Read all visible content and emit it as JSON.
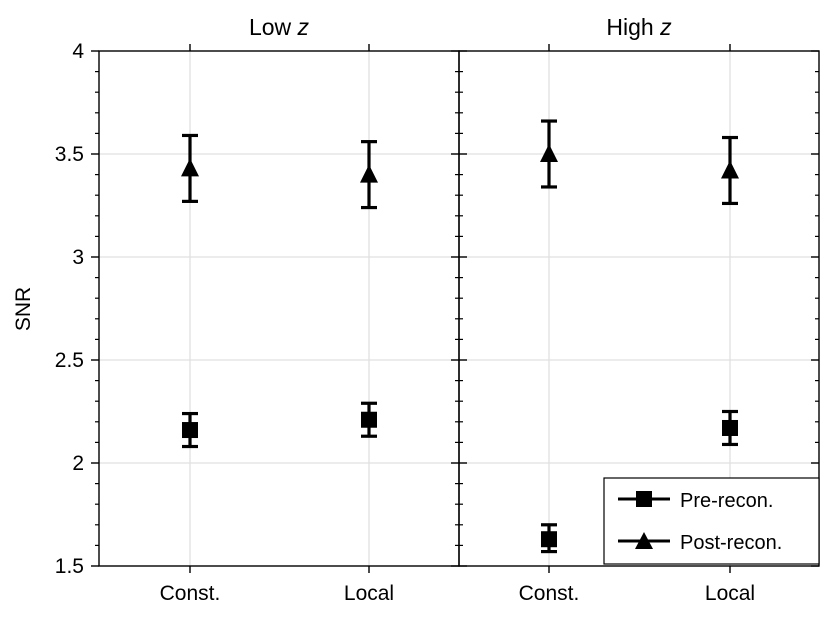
{
  "chart_data": {
    "type": "scatter",
    "ylabel": "SNR",
    "ylim": [
      1.5,
      4
    ],
    "yticks": [
      "1.5",
      "2",
      "2.5",
      "3",
      "3.5",
      "4"
    ],
    "categories": [
      "Const.",
      "Local"
    ],
    "grid": true,
    "legend_placement": "bottom-right",
    "panels": [
      {
        "title_prefix": "High ",
        "title_var": "z",
        "series": [
          {
            "name": "Pre-recon.",
            "marker": "square",
            "values": [
              1.63,
              2.17
            ],
            "err_low": [
              1.57,
              2.09
            ],
            "err_high": [
              1.7,
              2.25
            ]
          },
          {
            "name": "Post-recon.",
            "marker": "triangle",
            "values": [
              3.5,
              3.42
            ],
            "err_low": [
              3.34,
              3.26
            ],
            "err_high": [
              3.66,
              3.58
            ]
          }
        ]
      }
    ]
  },
  "panel_left": {
    "title_prefix": "Low ",
    "title_var": "z",
    "pre": {
      "values": [
        2.16,
        2.21
      ],
      "err_low": [
        2.08,
        2.13
      ],
      "err_high": [
        2.24,
        2.29
      ]
    },
    "post": {
      "values": [
        3.43,
        3.4
      ],
      "err_low": [
        3.27,
        3.24
      ],
      "err_high": [
        3.59,
        3.56
      ]
    }
  },
  "colors": {
    "marker": "#000000",
    "grid": "#e0e0e0",
    "axis": "#000000"
  }
}
